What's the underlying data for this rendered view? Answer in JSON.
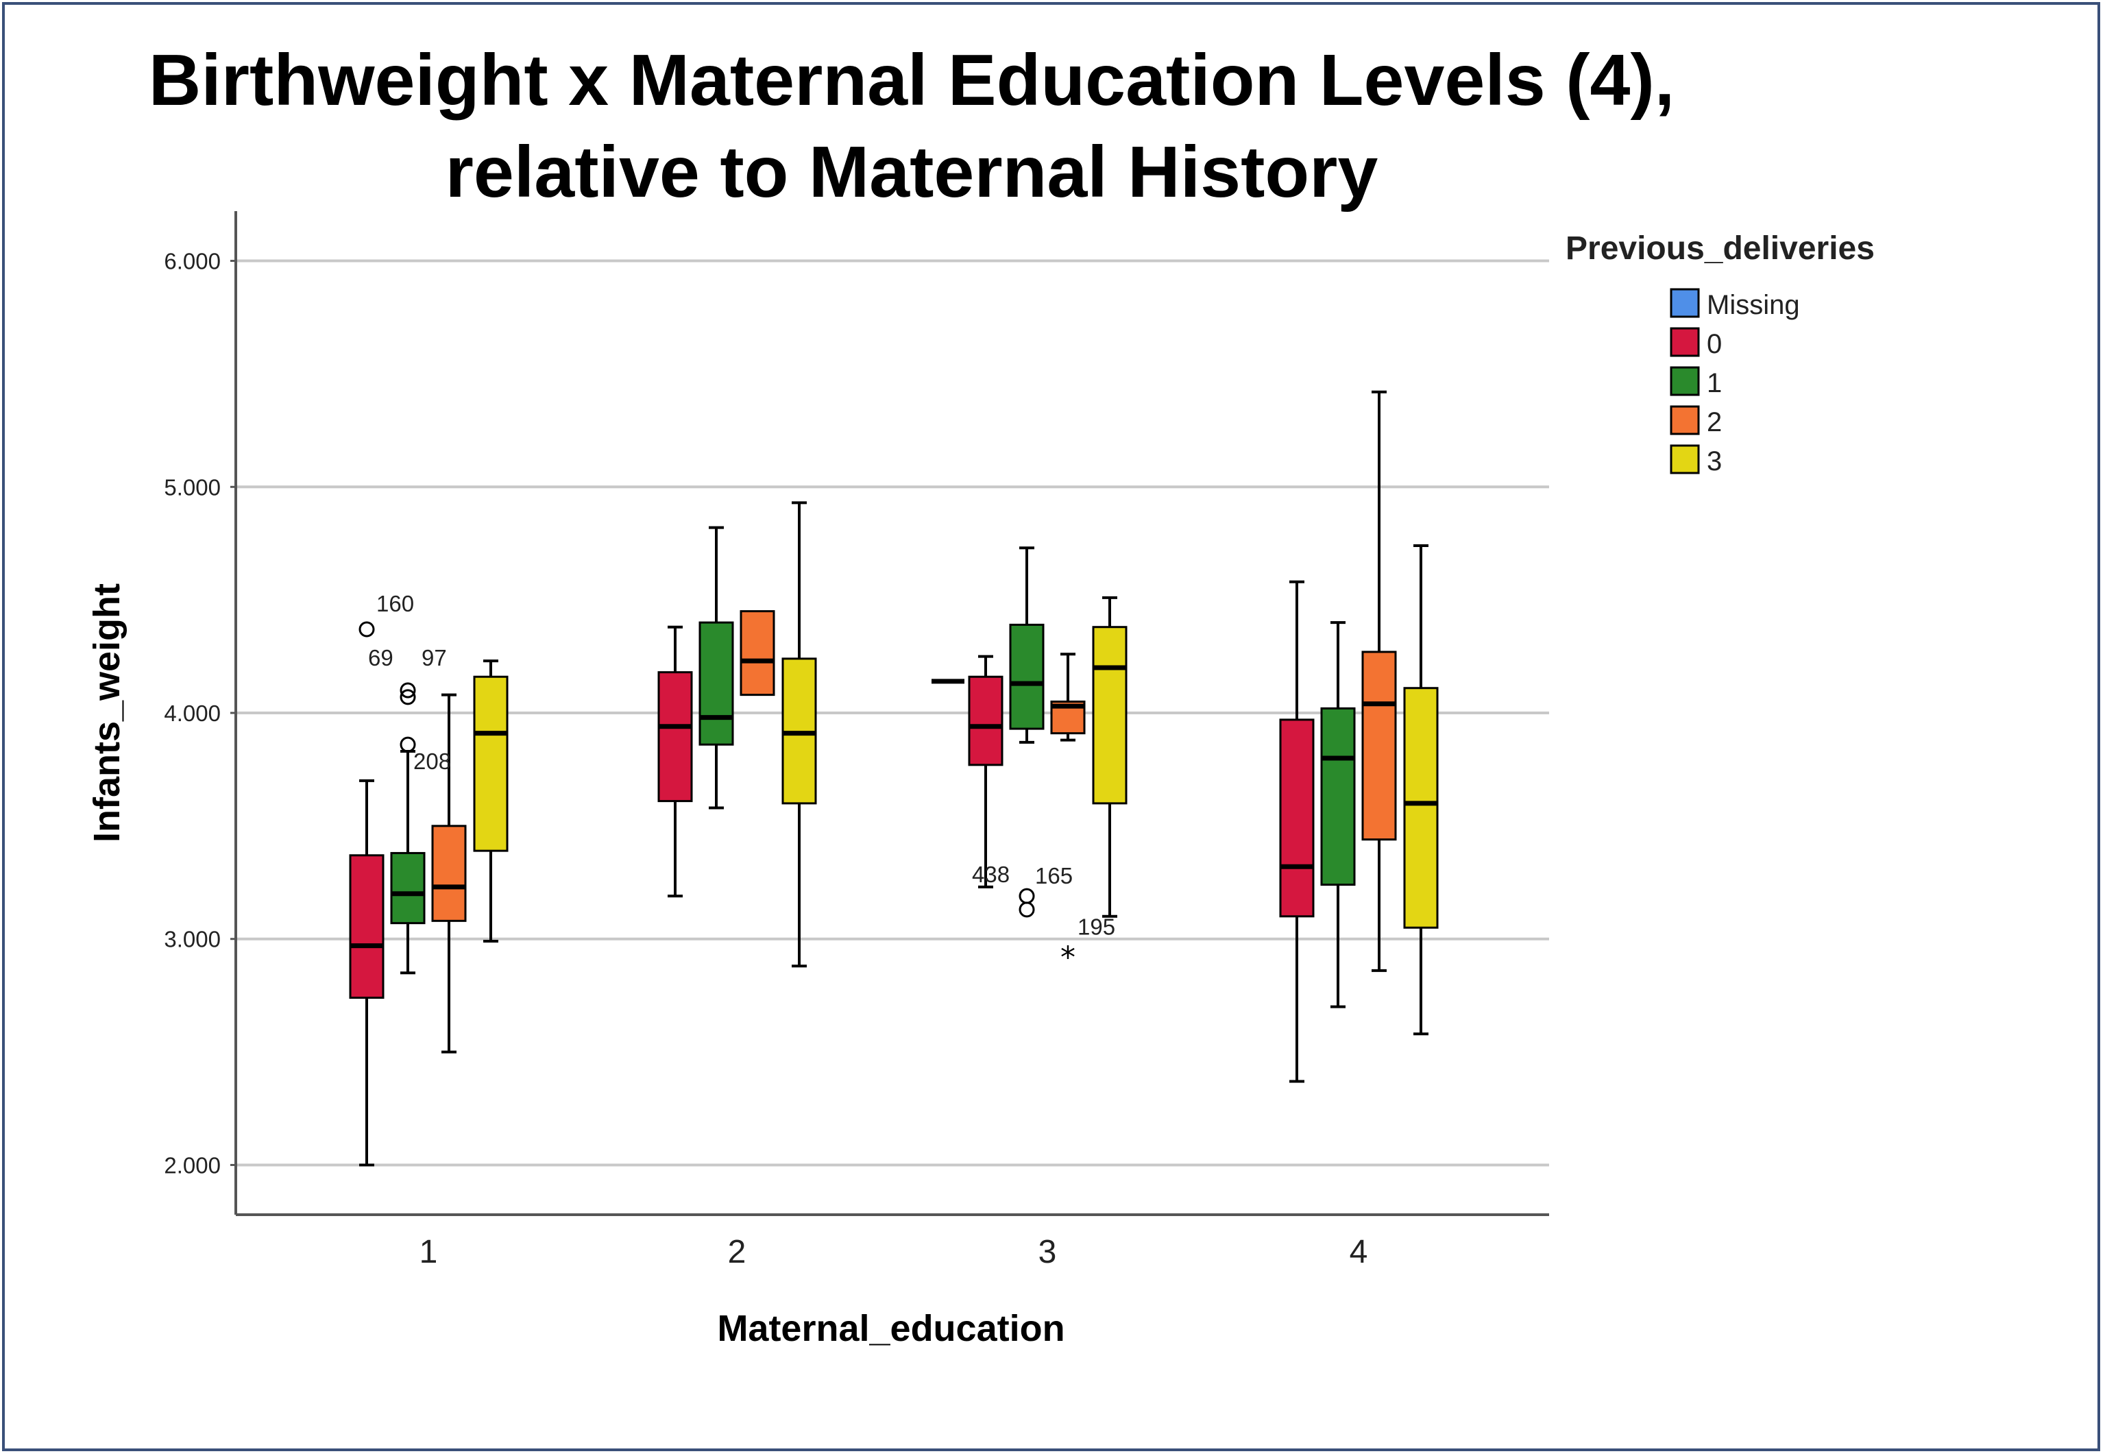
{
  "chart_data": {
    "type": "boxplot",
    "title": "Birthweight x Maternal Education Levels (4),",
    "subtitle": "relative to Maternal History",
    "xlabel": "Maternal_education",
    "ylabel": "Infants_weight",
    "categories": [
      "1",
      "2",
      "3",
      "4"
    ],
    "ylim": [
      1.78,
      6.22
    ],
    "yticks": [
      {
        "value": 2,
        "label": "2.000"
      },
      {
        "value": 3,
        "label": "3.000"
      },
      {
        "value": 4,
        "label": "4.000"
      },
      {
        "value": 5,
        "label": "5.000"
      },
      {
        "value": 6,
        "label": "6.000"
      }
    ],
    "grid": true,
    "legend": {
      "title": "Previous_deliveries",
      "position": "top-right",
      "entries": [
        {
          "label": "Missing",
          "color": "#4f8fe8"
        },
        {
          "label": "0",
          "color": "#d5173f"
        },
        {
          "label": "1",
          "color": "#2a8a2c"
        },
        {
          "label": "2",
          "color": "#f37332"
        },
        {
          "label": "3",
          "color": "#e3d614"
        }
      ]
    },
    "series_colors": {
      "0": "#d5173f",
      "1": "#2a8a2c",
      "2": "#f37332",
      "3": "#e3d614"
    },
    "boxes": [
      {
        "category": "1",
        "group": "0",
        "min": 2.0,
        "q1": 2.74,
        "median": 2.97,
        "q3": 3.37,
        "max": 3.7
      },
      {
        "category": "1",
        "group": "1",
        "min": 2.85,
        "q1": 3.07,
        "median": 3.2,
        "q3": 3.38,
        "max": 3.83
      },
      {
        "category": "1",
        "group": "2",
        "min": 2.5,
        "q1": 3.08,
        "median": 3.23,
        "q3": 3.5,
        "max": 4.08
      },
      {
        "category": "1",
        "group": "3",
        "min": 2.99,
        "q1": 3.39,
        "median": 3.91,
        "q3": 4.16,
        "max": 4.23
      },
      {
        "category": "2",
        "group": "0",
        "min": 3.19,
        "q1": 3.61,
        "median": 3.94,
        "q3": 4.18,
        "max": 4.38
      },
      {
        "category": "2",
        "group": "1",
        "min": 3.58,
        "q1": 3.86,
        "median": 3.98,
        "q3": 4.4,
        "max": 4.82
      },
      {
        "category": "2",
        "group": "2",
        "min": 4.08,
        "q1": 4.08,
        "median": 4.23,
        "q3": 4.45,
        "max": 4.45
      },
      {
        "category": "2",
        "group": "3",
        "min": 2.88,
        "q1": 3.6,
        "median": 3.91,
        "q3": 4.24,
        "max": 4.93
      },
      {
        "category": "3",
        "group": "Missing",
        "min": 4.14,
        "q1": 4.14,
        "median": 4.14,
        "q3": 4.14,
        "max": 4.14
      },
      {
        "category": "3",
        "group": "0",
        "min": 3.23,
        "q1": 3.77,
        "median": 3.94,
        "q3": 4.16,
        "max": 4.25
      },
      {
        "category": "3",
        "group": "1",
        "min": 3.87,
        "q1": 3.93,
        "median": 4.13,
        "q3": 4.39,
        "max": 4.73
      },
      {
        "category": "3",
        "group": "2",
        "min": 3.88,
        "q1": 3.91,
        "median": 4.03,
        "q3": 4.05,
        "max": 4.26
      },
      {
        "category": "3",
        "group": "3",
        "min": 3.1,
        "q1": 3.6,
        "median": 4.2,
        "q3": 4.38,
        "max": 4.51
      },
      {
        "category": "4",
        "group": "0",
        "min": 2.37,
        "q1": 3.1,
        "median": 3.32,
        "q3": 3.97,
        "max": 4.58
      },
      {
        "category": "4",
        "group": "1",
        "min": 2.7,
        "q1": 3.24,
        "median": 3.8,
        "q3": 4.02,
        "max": 4.4
      },
      {
        "category": "4",
        "group": "2",
        "min": 2.86,
        "q1": 3.44,
        "median": 4.04,
        "q3": 4.27,
        "max": 5.42
      },
      {
        "category": "4",
        "group": "3",
        "min": 2.58,
        "q1": 3.05,
        "median": 3.6,
        "q3": 4.11,
        "max": 4.74
      }
    ],
    "outliers": [
      {
        "category": "1",
        "group": "0",
        "value": 4.37,
        "label": "160",
        "marker": "circle"
      },
      {
        "category": "1",
        "group": "1",
        "value": 4.1,
        "label": "69",
        "marker": "circle"
      },
      {
        "category": "1",
        "group": "1",
        "value": 4.07,
        "label": "97",
        "marker": "circle"
      },
      {
        "category": "1",
        "group": "1",
        "value": 3.86,
        "label": "208",
        "marker": "circle"
      },
      {
        "category": "3",
        "group": "1",
        "value": 3.19,
        "label": "438",
        "marker": "circle"
      },
      {
        "category": "3",
        "group": "1",
        "value": 3.13,
        "label": "165",
        "marker": "circle"
      },
      {
        "category": "3",
        "group": "2",
        "value": 2.94,
        "label": "195",
        "marker": "star"
      }
    ]
  }
}
